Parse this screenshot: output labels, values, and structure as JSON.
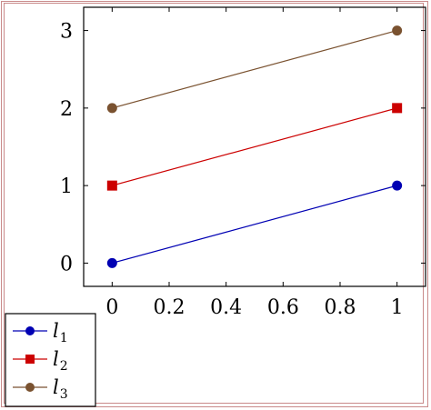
{
  "chart_data": {
    "type": "line",
    "x": [
      0,
      1
    ],
    "series": [
      {
        "name": "l1",
        "label_main": "l",
        "label_sub": "1",
        "values": [
          0,
          1
        ],
        "color": "#0000b3",
        "marker": "circle"
      },
      {
        "name": "l2",
        "label_main": "l",
        "label_sub": "2",
        "values": [
          1,
          2
        ],
        "color": "#cc0000",
        "marker": "square"
      },
      {
        "name": "l3",
        "label_main": "l",
        "label_sub": "3",
        "values": [
          2,
          3
        ],
        "color": "#7a5230",
        "marker": "circle"
      }
    ],
    "xlim": [
      -0.1,
      1.1
    ],
    "ylim": [
      -0.3,
      3.3
    ],
    "xticks": [
      0,
      0.2,
      0.4,
      0.6,
      0.8,
      1
    ],
    "xtick_labels": [
      "0",
      "0.2",
      "0.4",
      "0.6",
      "0.8",
      "1"
    ],
    "yticks": [
      0,
      1,
      2,
      3
    ],
    "ytick_labels": [
      "0",
      "1",
      "2",
      "3"
    ],
    "title": "",
    "xlabel": "",
    "ylabel": "",
    "grid": false,
    "legend_position": "bottom-left outside"
  }
}
